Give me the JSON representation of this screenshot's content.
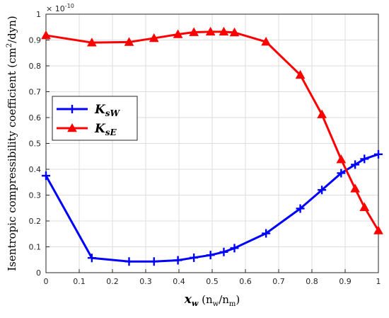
{
  "chart_data": {
    "type": "line",
    "x_label_main": "x",
    "x_label_sub": "w",
    "x_label_rest": " (n",
    "x_label_nsub1": "w",
    "x_label_slash": "/n",
    "x_label_nsub2": "m",
    "x_label_close": ")",
    "y_label": "Isentropic compressibility coefficient (cm",
    "y_label_sup": "2",
    "y_label_end": "/dyn)",
    "y_multiplier_base": "× 10",
    "y_multiplier_exp": "-10",
    "xlim": [
      0,
      1
    ],
    "ylim": [
      0,
      1
    ],
    "xticks": [
      "0",
      "0.1",
      "0.2",
      "0.3",
      "0.4",
      "0.5",
      "0.6",
      "0.7",
      "0.8",
      "0.9",
      "1"
    ],
    "yticks": [
      "0",
      "0.1",
      "0.2",
      "0.3",
      "0.4",
      "0.5",
      "0.6",
      "0.7",
      "0.8",
      "0.9",
      "1"
    ],
    "grid": true,
    "legend_position": "center-left",
    "series": [
      {
        "name_main": "K",
        "name_sub": "sW",
        "color": "#0000ff",
        "marker": "plus",
        "x": [
          0,
          0.138,
          0.25,
          0.325,
          0.397,
          0.445,
          0.495,
          0.535,
          0.567,
          0.662,
          0.765,
          0.83,
          0.888,
          0.93,
          0.958,
          1.0
        ],
        "y": [
          0.375,
          0.057,
          0.043,
          0.043,
          0.048,
          0.058,
          0.068,
          0.08,
          0.095,
          0.152,
          0.248,
          0.32,
          0.385,
          0.418,
          0.44,
          0.458
        ]
      },
      {
        "name_main": "K",
        "name_sub": "sE",
        "color": "#ff0000",
        "marker": "triangle",
        "x": [
          0,
          0.138,
          0.25,
          0.325,
          0.397,
          0.445,
          0.495,
          0.535,
          0.567,
          0.662,
          0.765,
          0.83,
          0.888,
          0.93,
          0.958,
          1.0
        ],
        "y": [
          0.918,
          0.89,
          0.892,
          0.907,
          0.922,
          0.93,
          0.932,
          0.932,
          0.929,
          0.893,
          0.765,
          0.612,
          0.438,
          0.325,
          0.253,
          0.163
        ]
      }
    ]
  }
}
